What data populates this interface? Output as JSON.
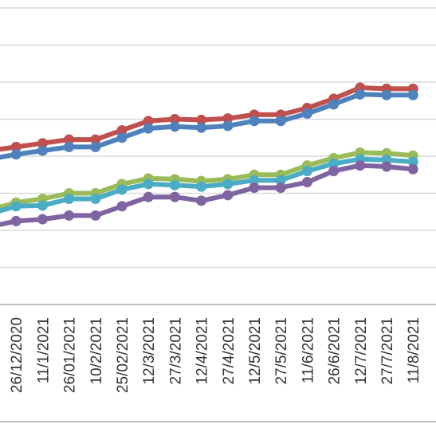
{
  "chart_data": {
    "type": "line",
    "title": "",
    "xlabel": "",
    "ylabel": "",
    "categories": [
      "",
      "26/12/2020",
      "11/1/2021",
      "26/01/2021",
      "10/2/2021",
      "25/02/2021",
      "12/3/2021",
      "27/3/2021",
      "12/4/2021",
      "27/4/2021",
      "12/5/2021",
      "27/5/2021",
      "11/6/2021",
      "26/6/2021",
      "12/7/2021",
      "27/7/2021",
      "11/8/2021"
    ],
    "ylim": [
      0,
      8
    ],
    "grid": true,
    "legend": "none",
    "series": [
      {
        "color": "#C0504D",
        "values": [
          4.15,
          4.25,
          4.35,
          4.45,
          4.45,
          4.7,
          4.95,
          5.0,
          4.98,
          5.02,
          5.12,
          5.12,
          5.3,
          5.55,
          5.85,
          5.82,
          5.82
        ]
      },
      {
        "color": "#4F81BD",
        "values": [
          3.92,
          4.05,
          4.15,
          4.25,
          4.25,
          4.5,
          4.75,
          4.8,
          4.77,
          4.82,
          4.95,
          4.95,
          5.15,
          5.4,
          5.67,
          5.65,
          5.65
        ]
      },
      {
        "color": "#9BBB59",
        "values": [
          2.55,
          2.75,
          2.85,
          3.0,
          3.0,
          3.25,
          3.4,
          3.38,
          3.33,
          3.38,
          3.5,
          3.5,
          3.75,
          3.95,
          4.1,
          4.08,
          4.02
        ]
      },
      {
        "color": "#4BACC6",
        "values": [
          2.45,
          2.65,
          2.67,
          2.85,
          2.85,
          3.1,
          3.25,
          3.22,
          3.18,
          3.25,
          3.35,
          3.35,
          3.6,
          3.8,
          3.92,
          3.9,
          3.85
        ]
      },
      {
        "color": "#8064A2",
        "values": [
          2.1,
          2.25,
          2.3,
          2.4,
          2.4,
          2.65,
          2.9,
          2.9,
          2.8,
          2.95,
          3.15,
          3.15,
          3.3,
          3.6,
          3.75,
          3.72,
          3.65
        ]
      }
    ]
  }
}
